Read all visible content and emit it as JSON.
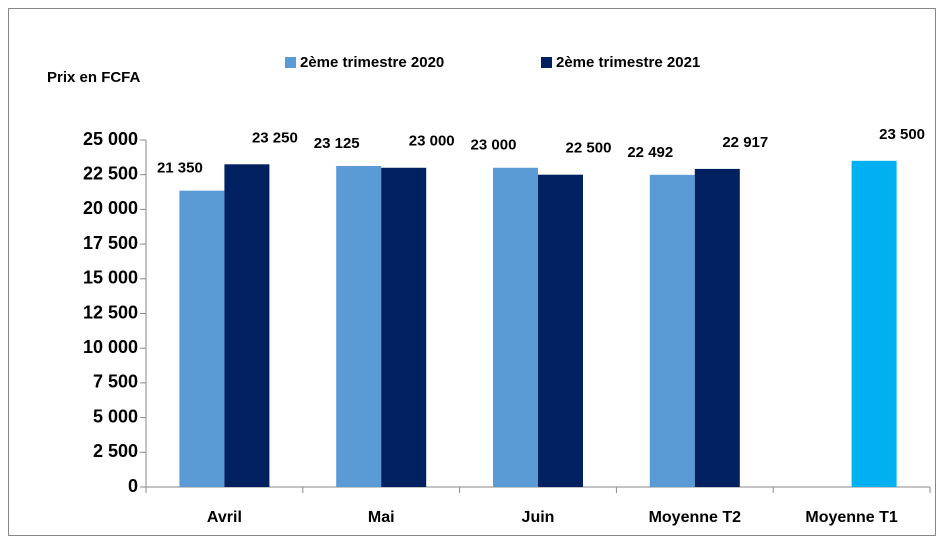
{
  "chart_data": {
    "type": "bar",
    "y_label": "Prix en FCFA",
    "categories": [
      "Avril",
      "Mai",
      "Juin",
      "Moyenne T2",
      "Moyenne T1"
    ],
    "series": [
      {
        "name": "2ème trimestre 2020",
        "color": "#5b9bd5",
        "values": [
          21350,
          23125,
          23000,
          22492,
          null
        ],
        "value_labels": [
          "21 350",
          "23 125",
          "23 000",
          "22 492",
          null
        ]
      },
      {
        "name": "2ème trimestre 2021",
        "color": "#002060",
        "point_colors": [
          "#002060",
          "#002060",
          "#002060",
          "#002060",
          "#00b0f0"
        ],
        "values": [
          23250,
          23000,
          22500,
          22917,
          23500
        ],
        "value_labels": [
          "23 250",
          "23 000",
          "22 500",
          "22 917",
          "23 500"
        ]
      }
    ],
    "ylim": [
      0,
      25000
    ],
    "yticks": [
      0,
      {
        "value": 2500,
        "label": "2 500"
      },
      {
        "value": 5000,
        "label": "5 000"
      },
      {
        "value": 7500,
        "label": "7 500"
      },
      {
        "value": 10000,
        "label": "10 000"
      },
      {
        "value": 12500,
        "label": "12 500"
      },
      {
        "value": 15000,
        "label": "15 000"
      },
      {
        "value": 17500,
        "label": "17 500"
      },
      {
        "value": 20000,
        "label": "20 000"
      },
      {
        "value": 22500,
        "label": "22 500"
      },
      {
        "value": 25000,
        "label": "25 000"
      }
    ],
    "grid": false
  }
}
